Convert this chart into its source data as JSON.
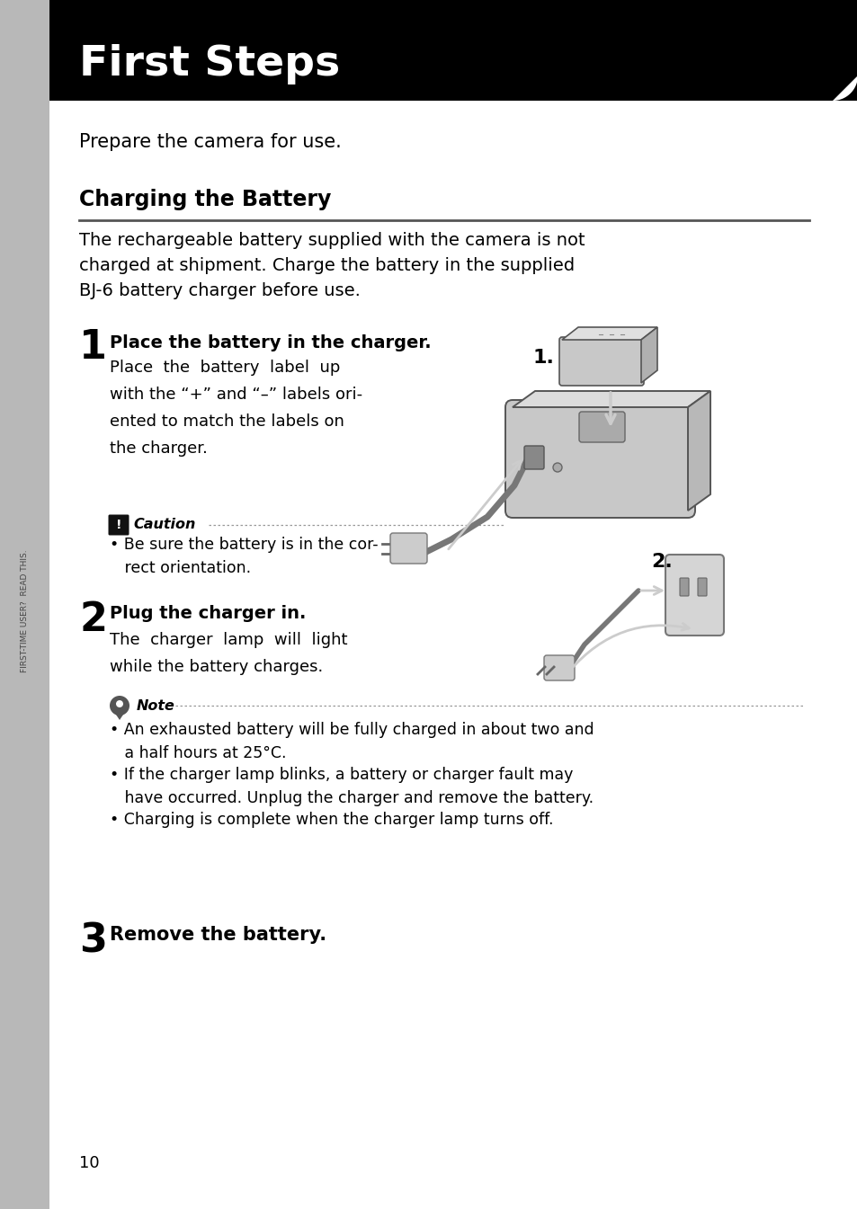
{
  "page_bg": "#ffffff",
  "header_bg": "#000000",
  "header_text": "First Steps",
  "header_text_color": "#ffffff",
  "sidebar_bg": "#b0b0b0",
  "sidebar_text": "FIRST-TIME USER?  READ THIS.",
  "prepare_text": "Prepare the camera for use.",
  "section_title": "Charging the Battery",
  "intro_text": "The rechargeable battery supplied with the camera is not\ncharged at shipment. Charge the battery in the supplied\nBJ-6 battery charger before use.",
  "step1_num": "1",
  "step1_title": "Place the battery in the charger.",
  "step1_body": "Place  the  battery  label  up\nwith the “+” and “–” labels ori-\nented to match the labels on\nthe charger.",
  "caution_title": "Caution",
  "caution_body": "• Be sure the battery is in the cor-\n   rect orientation.",
  "step2_num": "2",
  "step2_title": "Plug the charger in.",
  "step2_body": "The  charger  lamp  will  light\nwhile the battery charges.",
  "note_title": "Note",
  "note_bullets": [
    "• An exhausted battery will be fully charged in about two and\n   a half hours at 25°C.",
    "• If the charger lamp blinks, a battery or charger fault may\n   have occurred. Unplug the charger and remove the battery.",
    "• Charging is complete when the charger lamp turns off."
  ],
  "step3_num": "3",
  "step3_title": "Remove the battery.",
  "page_number": "10",
  "fig_width": 9.54,
  "fig_height": 13.45,
  "dpi": 100
}
